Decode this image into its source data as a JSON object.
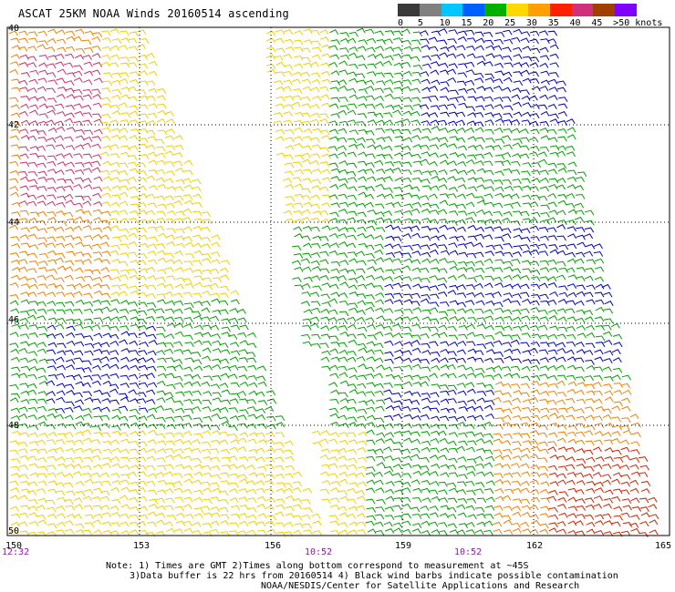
{
  "title": "ASCAT 25KM NOAA Winds 20160514 ascending",
  "legend": {
    "labels": [
      "0",
      "5",
      "10",
      "15",
      "20",
      "25",
      "30",
      "35",
      "40",
      "45",
      ">50 knots"
    ],
    "colors": [
      "#3a3a3a",
      "#808080",
      "#00c8ff",
      "#0060ff",
      "#00b000",
      "#ffd800",
      "#ffa000",
      "#ff2000",
      "#d0307a",
      "#a04000",
      "#8000ff"
    ]
  },
  "axes": {
    "x_ticks": [
      "150",
      "153",
      "156",
      "159",
      "162",
      "165"
    ],
    "y_ticks": [
      "40",
      "42",
      "44",
      "46",
      "48",
      "50"
    ]
  },
  "times": {
    "left": "12:32",
    "mid": "10:52",
    "right": "10:52"
  },
  "notes": [
    "Note: 1) Times are GMT 2)Times along bottom correspond to measurement at ~45S",
    "3)Data buffer is 22 hrs from 20160514 4) Black wind barbs indicate possible contamination",
    "NOAA/NESDIS/Center for Satellite Applications and Research"
  ],
  "colors": {
    "blue": "#0000b8",
    "green": "#00a000",
    "yellow": "#f0d000",
    "orange": "#f08000",
    "red": "#d02000",
    "magenta": "#c8306a"
  }
}
